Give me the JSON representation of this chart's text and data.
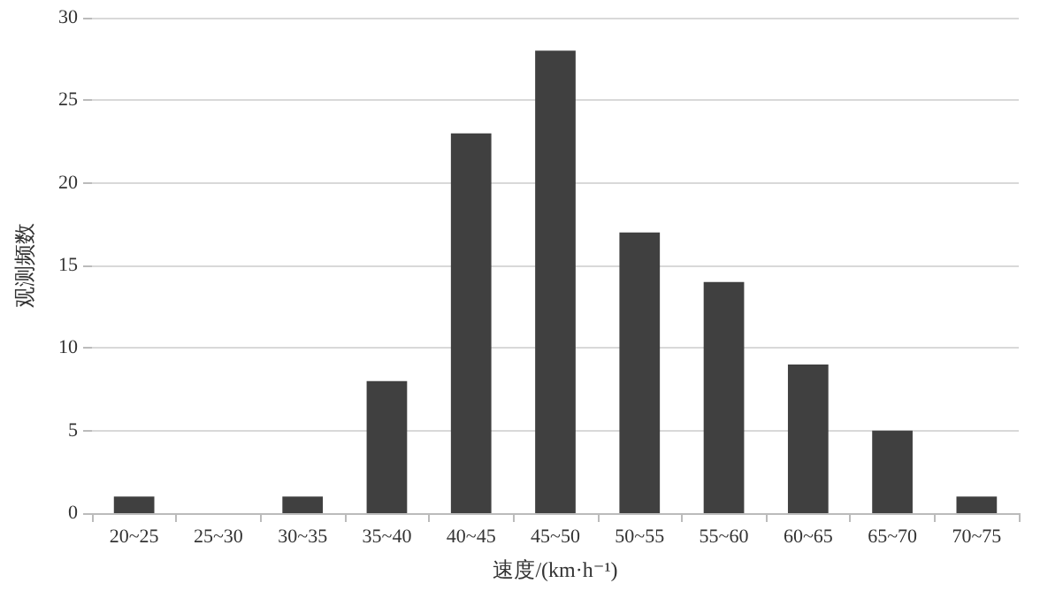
{
  "chart_data": {
    "type": "bar",
    "xlabel": "速度/(km·h⁻¹)",
    "ylabel": "观测频数",
    "categories": [
      "20~25",
      "25~30",
      "30~35",
      "35~40",
      "40~45",
      "45~50",
      "50~55",
      "55~60",
      "60~65",
      "65~70",
      "70~75"
    ],
    "values": [
      1,
      0,
      1,
      8,
      23,
      28,
      17,
      14,
      9,
      5,
      1
    ],
    "color": "#404040",
    "ylim": [
      0,
      30
    ],
    "yticks": [
      0,
      5,
      10,
      15,
      20,
      25,
      30
    ],
    "grid": "y"
  }
}
